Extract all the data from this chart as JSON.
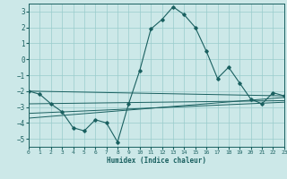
{
  "x": [
    0,
    1,
    2,
    3,
    4,
    5,
    6,
    7,
    8,
    9,
    10,
    11,
    12,
    13,
    14,
    15,
    16,
    17,
    18,
    19,
    20,
    21,
    22,
    23
  ],
  "main_line": [
    -2.0,
    -2.2,
    -2.8,
    -3.3,
    -4.3,
    -4.5,
    -3.8,
    -4.0,
    -5.2,
    -2.8,
    -0.7,
    1.9,
    2.5,
    3.3,
    2.8,
    2.0,
    0.5,
    -1.2,
    -0.5,
    -1.5,
    -2.5,
    -2.8,
    -2.1,
    -2.3
  ],
  "reg_lines": [
    [
      -2.0,
      -2.3
    ],
    [
      -2.8,
      -2.6
    ],
    [
      -3.4,
      -2.7
    ],
    [
      -3.7,
      -2.4
    ]
  ],
  "bg_color": "#cce8e8",
  "grid_color": "#99cccc",
  "line_color": "#1a6060",
  "xlabel": "Humidex (Indice chaleur)",
  "ylim": [
    -5.5,
    3.5
  ],
  "xlim": [
    0,
    23
  ],
  "yticks": [
    -5,
    -4,
    -3,
    -2,
    -1,
    0,
    1,
    2,
    3
  ],
  "xticks": [
    0,
    1,
    2,
    3,
    4,
    5,
    6,
    7,
    8,
    9,
    10,
    11,
    12,
    13,
    14,
    15,
    16,
    17,
    18,
    19,
    20,
    21,
    22,
    23
  ]
}
